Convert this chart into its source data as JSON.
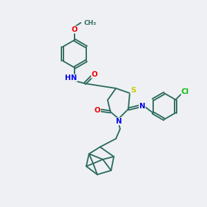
{
  "bg_color": "#eef0f4",
  "bond_color": "#2d6b5e",
  "atom_colors": {
    "N": "#0000ee",
    "O": "#ee0000",
    "S": "#cccc00",
    "Cl": "#00bb00",
    "C": "#2d6b5e",
    "H": "#777777"
  },
  "figsize": [
    3.0,
    3.0
  ],
  "dpi": 100
}
